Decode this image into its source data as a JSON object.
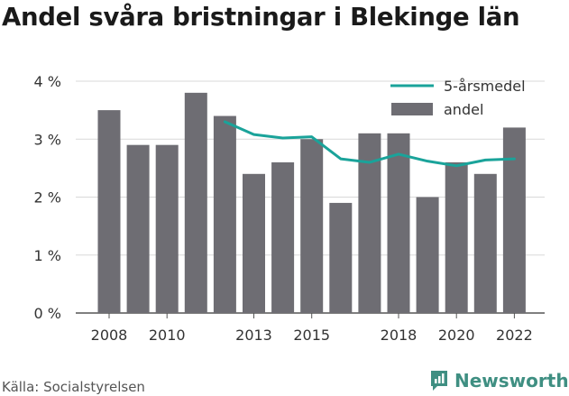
{
  "title": "Andel svåra bristningar i Blekinge län",
  "source": "Källa: Socialstyrelsen",
  "brand": "Newsworthy",
  "colors": {
    "bar": "#6e6d73",
    "line": "#1aa39a",
    "grid": "#d9d9d9",
    "brand": "#3f8f82"
  },
  "chart_data": {
    "type": "bar",
    "title": "Andel svåra bristningar i Blekinge län",
    "x": [
      2008,
      2009,
      2010,
      2011,
      2012,
      2013,
      2014,
      2015,
      2016,
      2017,
      2018,
      2019,
      2020,
      2021,
      2022
    ],
    "x_tick_labels": [
      "2008",
      "2010",
      "2013",
      "2015",
      "2018",
      "2020",
      "2022"
    ],
    "y_tick_labels": [
      "0 %",
      "1 %",
      "2 %",
      "3 %",
      "4 %"
    ],
    "ylim": [
      0,
      4
    ],
    "grid": true,
    "legend_position": "top-right",
    "series": [
      {
        "name": "andel",
        "type": "bar",
        "values": [
          3.5,
          2.9,
          2.9,
          3.8,
          3.4,
          2.4,
          2.6,
          3.0,
          1.9,
          3.1,
          3.1,
          2.0,
          2.6,
          2.4,
          3.2
        ]
      },
      {
        "name": "5-årsmedel",
        "type": "line",
        "values": [
          null,
          null,
          null,
          null,
          3.3,
          3.08,
          3.02,
          3.04,
          2.66,
          2.6,
          2.74,
          2.62,
          2.54,
          2.64,
          2.66
        ]
      }
    ]
  }
}
